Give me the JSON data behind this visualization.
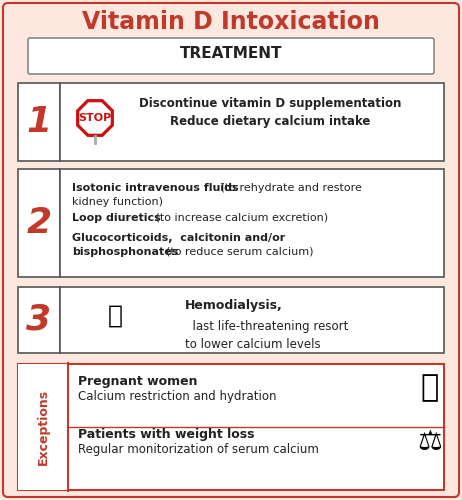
{
  "title": "Vitamin D Intoxication",
  "title_color": "#c0392b",
  "bg_color": "#fde8e0",
  "box_bg": "#ffffff",
  "border_color": "#c0392b",
  "treatment_label": "TREATMENT",
  "number_color": "#c0392b",
  "sections": [
    {
      "number": "1",
      "text_bold": "Discontinue vitamin D supplementation\nReduce dietary calcium intake",
      "text_normal": ""
    },
    {
      "number": "2",
      "text_parts": [
        {
          "bold": "Isotonic intravenous fluids",
          "normal": " (to rehydrate and restore\nkidney function)"
        },
        {
          "bold": "\nLoop diuretics",
          "normal": " (to increase calcium excretion)"
        },
        {
          "bold": "\nGlucocorticoids,  calcitonin and/or\nbisphosphonates",
          "normal": "  (to reduce serum calcium)"
        }
      ]
    },
    {
      "number": "3",
      "text_bold": "Hemodialysis,",
      "text_normal": "  last life-threatening resort\nto lower calcium levels"
    }
  ],
  "exceptions_label": "Exceptions",
  "exceptions_label_color": "#c0392b",
  "exception_items": [
    {
      "title_bold": "Pregnant women",
      "subtitle": "Calcium restriction and hydration"
    },
    {
      "title_bold": "Patients with weight loss",
      "subtitle": "Regular monitorization of serum calcium"
    }
  ]
}
